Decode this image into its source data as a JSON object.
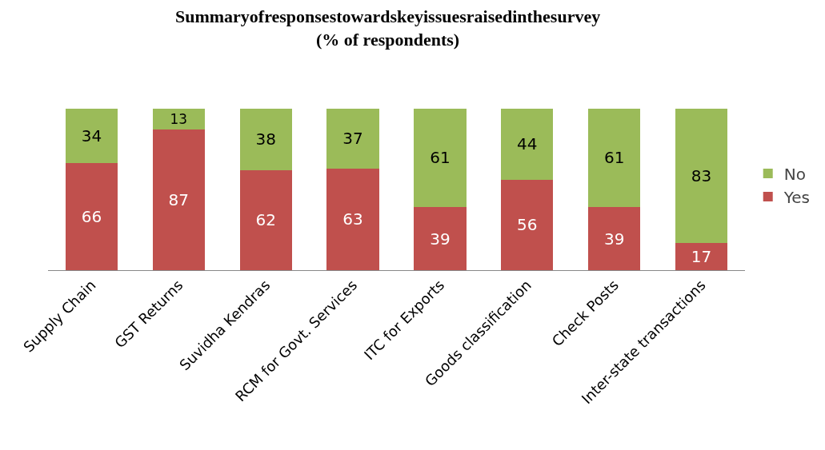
{
  "chart_data": {
    "type": "bar",
    "title": "Summaryofresponsestowardskeyissuesraisedinthesurvey",
    "subtitle": "(% of respondents)",
    "categories": [
      "Supply Chain",
      "GST Returns",
      "Suvidha Kendras",
      "RCM for Govt. Services",
      "ITC for Exports",
      "Goods classification",
      "Check Posts",
      "Inter-state transactions"
    ],
    "stacked": true,
    "data_labels": true,
    "legend": "right",
    "series": [
      {
        "name": "Yes",
        "color": "#c0504d",
        "values": [
          66,
          87,
          62,
          63,
          39,
          56,
          39,
          17
        ]
      },
      {
        "name": "No",
        "color": "#9bbb59",
        "values": [
          34,
          13,
          38,
          37,
          61,
          44,
          61,
          83
        ]
      }
    ]
  }
}
